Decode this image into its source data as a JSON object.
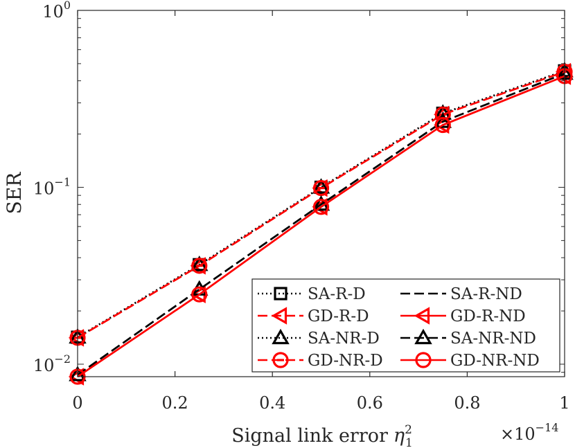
{
  "chart_data": {
    "type": "line",
    "yscale": "log",
    "xlabel": "Signal link error",
    "xlabel_symbol": "η",
    "xlabel_sup": "2",
    "xlabel_sub": "1",
    "ylabel": "SER",
    "x_multiplier": {
      "base": "×10",
      "exp": "−14"
    },
    "xlim": [
      0,
      1
    ],
    "ylim": [
      0.0085,
      1
    ],
    "xticks": [
      {
        "value": 0,
        "label": "0"
      },
      {
        "value": 0.2,
        "label": "0.2"
      },
      {
        "value": 0.4,
        "label": "0.4"
      },
      {
        "value": 0.6,
        "label": "0.6"
      },
      {
        "value": 0.8,
        "label": "0.8"
      },
      {
        "value": 1,
        "label": "1"
      }
    ],
    "yticks": [
      {
        "value": 0.01,
        "base": "10",
        "exp": "−2"
      },
      {
        "value": 0.1,
        "base": "10",
        "exp": "−1"
      },
      {
        "value": 1,
        "base": "10",
        "exp": "0"
      }
    ],
    "x": [
      0,
      0.25,
      0.5,
      0.75,
      1
    ],
    "series": [
      {
        "name": "SA-R-D",
        "color": "#000000",
        "dash": "dot",
        "marker": "square",
        "values": [
          0.0142,
          0.0365,
          0.1,
          0.262,
          0.455
        ]
      },
      {
        "name": "GD-R-D",
        "color": "#ff0000",
        "dash": "dash",
        "marker": "triangle-left",
        "values": [
          0.0141,
          0.036,
          0.099,
          0.258,
          0.45
        ]
      },
      {
        "name": "SA-NR-D",
        "color": "#000000",
        "dash": "dot",
        "marker": "triangle-up",
        "values": [
          0.0142,
          0.0365,
          0.1,
          0.262,
          0.455
        ]
      },
      {
        "name": "GD-NR-D",
        "color": "#ff0000",
        "dash": "dash",
        "marker": "circle-minus",
        "values": [
          0.0141,
          0.036,
          0.099,
          0.258,
          0.45
        ]
      },
      {
        "name": "SA-R-ND",
        "color": "#000000",
        "dash": "dash",
        "marker": "none",
        "values": [
          0.0087,
          0.0265,
          0.08,
          0.235,
          0.44
        ]
      },
      {
        "name": "GD-R-ND",
        "color": "#ff0000",
        "dash": "solid",
        "marker": "triangle-left",
        "values": [
          0.0085,
          0.0248,
          0.0775,
          0.225,
          0.425
        ]
      },
      {
        "name": "SA-NR-ND",
        "color": "#000000",
        "dash": "dash",
        "marker": "triangle-up",
        "values": [
          0.0087,
          0.0265,
          0.08,
          0.235,
          0.44
        ]
      },
      {
        "name": "GD-NR-ND",
        "color": "#ff0000",
        "dash": "solid",
        "marker": "circle",
        "values": [
          0.0085,
          0.0248,
          0.0775,
          0.225,
          0.425
        ]
      }
    ],
    "legend": {
      "placement": "bottom-right",
      "columns": [
        [
          "SA-R-D",
          "GD-R-D",
          "SA-NR-D",
          "GD-NR-D"
        ],
        [
          "SA-R-ND",
          "GD-R-ND",
          "SA-NR-ND",
          "GD-NR-ND"
        ]
      ]
    }
  }
}
